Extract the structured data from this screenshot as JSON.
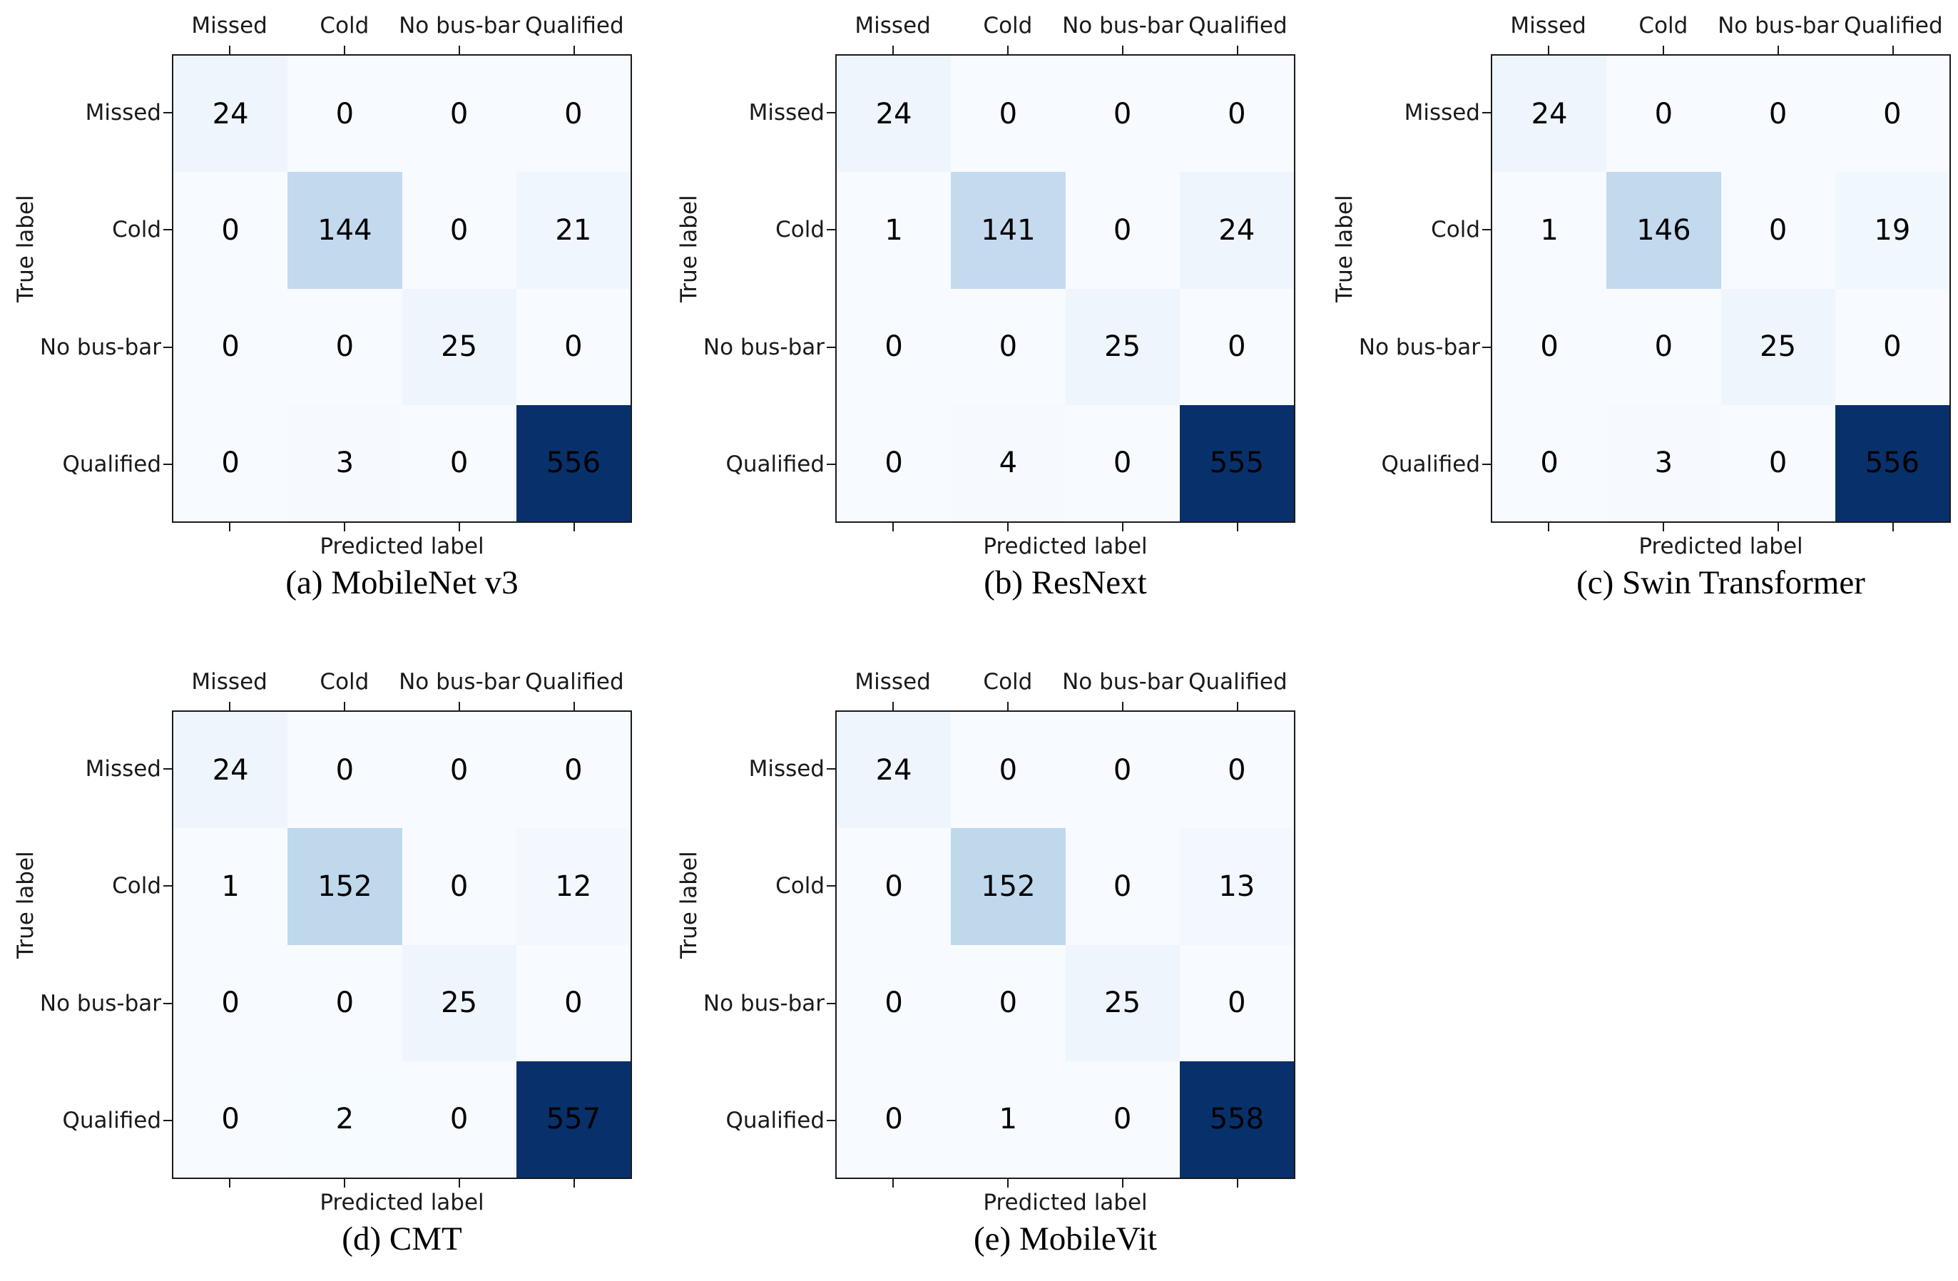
{
  "figure": {
    "description": "Confusion matrices of five classification models",
    "x_axis_label": "Predicted label",
    "y_axis_label": "True label",
    "class_labels": [
      "Missed",
      "Cold",
      "No bus-bar",
      "Qualified"
    ]
  },
  "colors": {
    "background": "#ffffff",
    "cell_text": "#000000",
    "axis_text": "#1a1a1a",
    "spine": "#1a1a1a",
    "colormap_min": "#f7fbff",
    "colormap_max": "#08306b"
  },
  "colormap_stops": [
    "#f7fbff",
    "#deebf7",
    "#c6dbef",
    "#9ecae1",
    "#6baed6",
    "#4292c6",
    "#2171b5",
    "#08519c",
    "#08306b"
  ],
  "chart_data": [
    {
      "type": "heatmap",
      "caption": "(a) MobileNet v3",
      "xlabel": "Predicted label",
      "ylabel": "True label",
      "x_tick_labels": [
        "Missed",
        "Cold",
        "No bus-bar",
        "Qualified"
      ],
      "y_tick_labels": [
        "Missed",
        "Cold",
        "No bus-bar",
        "Qualified"
      ],
      "matrix": [
        [
          24,
          0,
          0,
          0
        ],
        [
          0,
          144,
          0,
          21
        ],
        [
          0,
          0,
          25,
          0
        ],
        [
          0,
          3,
          0,
          556
        ]
      ],
      "vmin": 0,
      "colormap": "Blues",
      "grid": {
        "row": 0,
        "col": 0
      }
    },
    {
      "type": "heatmap",
      "caption": "(b) ResNext",
      "xlabel": "Predicted label",
      "ylabel": "True label",
      "x_tick_labels": [
        "Missed",
        "Cold",
        "No bus-bar",
        "Qualified"
      ],
      "y_tick_labels": [
        "Missed",
        "Cold",
        "No bus-bar",
        "Qualified"
      ],
      "matrix": [
        [
          24,
          0,
          0,
          0
        ],
        [
          1,
          141,
          0,
          24
        ],
        [
          0,
          0,
          25,
          0
        ],
        [
          0,
          4,
          0,
          555
        ]
      ],
      "vmin": 0,
      "colormap": "Blues",
      "grid": {
        "row": 0,
        "col": 1
      }
    },
    {
      "type": "heatmap",
      "caption": "(c) Swin Transformer",
      "xlabel": "Predicted label",
      "ylabel": "True label",
      "x_tick_labels": [
        "Missed",
        "Cold",
        "No bus-bar",
        "Qualified"
      ],
      "y_tick_labels": [
        "Missed",
        "Cold",
        "No bus-bar",
        "Qualified"
      ],
      "matrix": [
        [
          24,
          0,
          0,
          0
        ],
        [
          1,
          146,
          0,
          19
        ],
        [
          0,
          0,
          25,
          0
        ],
        [
          0,
          3,
          0,
          556
        ]
      ],
      "vmin": 0,
      "colormap": "Blues",
      "grid": {
        "row": 0,
        "col": 2
      }
    },
    {
      "type": "heatmap",
      "caption": "(d) CMT",
      "xlabel": "Predicted label",
      "ylabel": "True label",
      "x_tick_labels": [
        "Missed",
        "Cold",
        "No bus-bar",
        "Qualified"
      ],
      "y_tick_labels": [
        "Missed",
        "Cold",
        "No bus-bar",
        "Qualified"
      ],
      "matrix": [
        [
          24,
          0,
          0,
          0
        ],
        [
          1,
          152,
          0,
          12
        ],
        [
          0,
          0,
          25,
          0
        ],
        [
          0,
          2,
          0,
          557
        ]
      ],
      "vmin": 0,
      "colormap": "Blues",
      "grid": {
        "row": 1,
        "col": 0
      }
    },
    {
      "type": "heatmap",
      "caption": "(e) MobileVit",
      "xlabel": "Predicted label",
      "ylabel": "True label",
      "x_tick_labels": [
        "Missed",
        "Cold",
        "No bus-bar",
        "Qualified"
      ],
      "y_tick_labels": [
        "Missed",
        "Cold",
        "No bus-bar",
        "Qualified"
      ],
      "matrix": [
        [
          24,
          0,
          0,
          0
        ],
        [
          0,
          152,
          0,
          13
        ],
        [
          0,
          0,
          25,
          0
        ],
        [
          0,
          1,
          0,
          558
        ]
      ],
      "vmin": 0,
      "colormap": "Blues",
      "grid": {
        "row": 1,
        "col": 1
      }
    }
  ]
}
